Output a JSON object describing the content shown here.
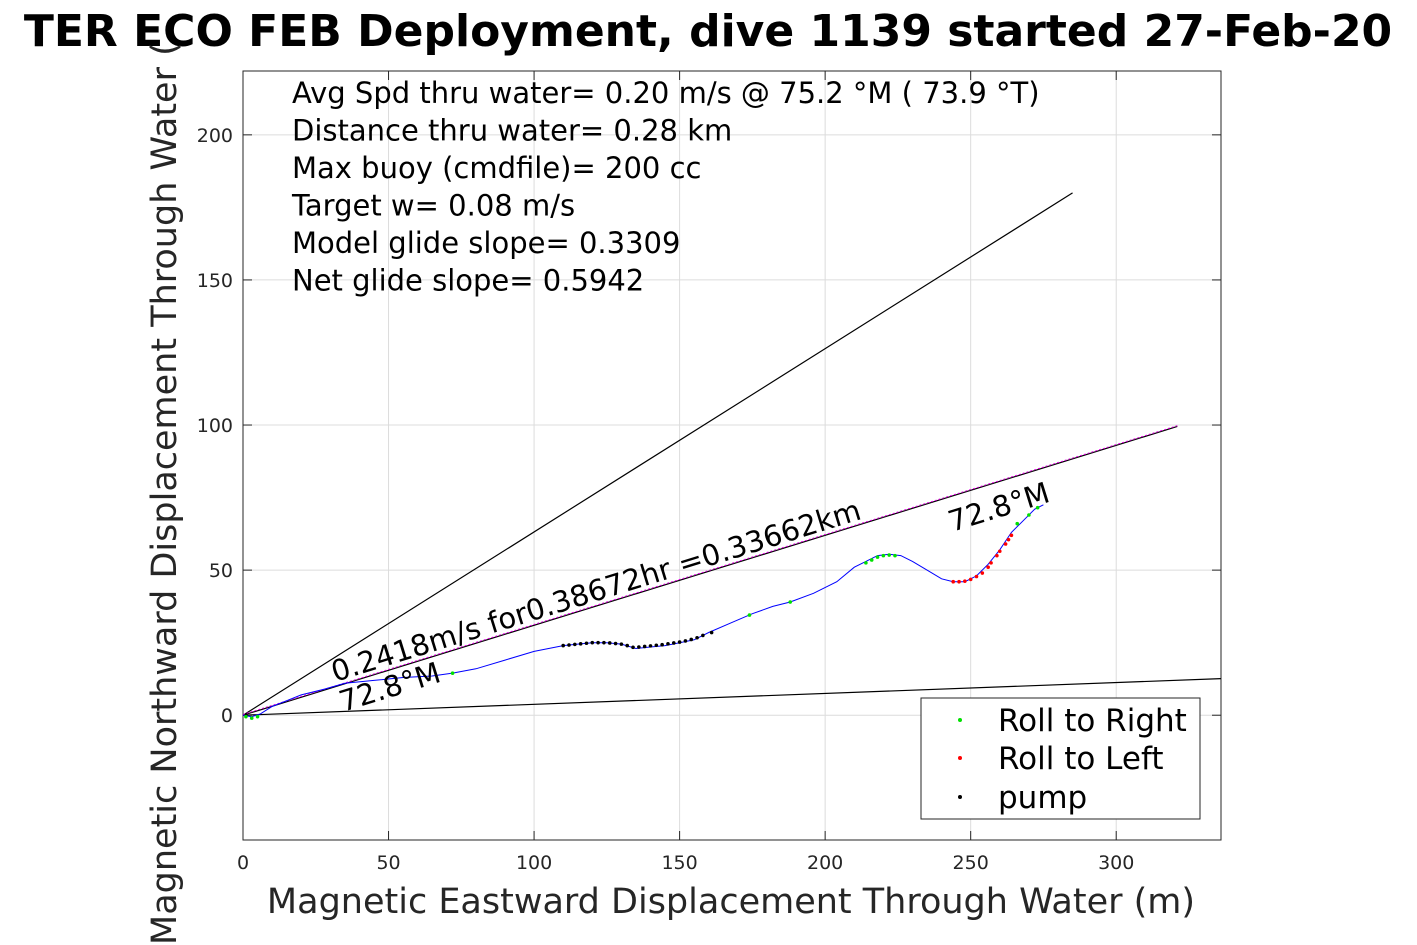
{
  "chart_data": {
    "type": "scatter",
    "title": "TER ECO FEB Deployment, dive 1139 started 27-Feb-20",
    "xlabel": "Magnetic Eastward Displacement Through Water (m)",
    "ylabel": "Magnetic Northward Displacement Through Water (",
    "xlim": [
      0,
      336
    ],
    "ylim": [
      -43,
      222
    ],
    "xticks": [
      0,
      50,
      100,
      150,
      200,
      250,
      300
    ],
    "yticks": [
      0,
      50,
      100,
      150,
      200
    ],
    "grid": true,
    "legend_position": "bottom-right",
    "annotations": [
      "Avg Spd thru water=  0.20 m/s @  75.2 °M ( 73.9 °T)",
      "Distance thru water=  0.28 km",
      "Max buoy (cmdfile)= 200 cc",
      "Target w= 0.08 m/s",
      "Model glide slope= 0.3309",
      "Net glide slope= 0.5942"
    ],
    "rotated_labels": {
      "current": "0.2418m/s for0.38672hr =0.33662km",
      "heading_start": "72.8°M",
      "heading_end": "72.8°M"
    },
    "lines": {
      "upper_bound": [
        [
          0,
          0
        ],
        [
          285,
          180
        ]
      ],
      "lower_bound": [
        [
          0,
          0
        ],
        [
          336,
          12.6
        ]
      ],
      "current_vector": [
        [
          0,
          0
        ],
        [
          321,
          99.5
        ]
      ]
    },
    "track": [
      [
        0,
        0
      ],
      [
        3,
        -0.5
      ],
      [
        6,
        0.5
      ],
      [
        10,
        3
      ],
      [
        15,
        5
      ],
      [
        20,
        7
      ],
      [
        28,
        9
      ],
      [
        35,
        11
      ],
      [
        45,
        12
      ],
      [
        55,
        13
      ],
      [
        65,
        13.5
      ],
      [
        72,
        14.5
      ],
      [
        80,
        16
      ],
      [
        90,
        19
      ],
      [
        100,
        22
      ],
      [
        110,
        24
      ],
      [
        115,
        24.5
      ],
      [
        120,
        25
      ],
      [
        125,
        25
      ],
      [
        130,
        24.5
      ],
      [
        135,
        23
      ],
      [
        140,
        23.5
      ],
      [
        145,
        24
      ],
      [
        150,
        25
      ],
      [
        155,
        26
      ],
      [
        160,
        28.5
      ],
      [
        168,
        32
      ],
      [
        175,
        35
      ],
      [
        182,
        37.5
      ],
      [
        188,
        39
      ],
      [
        196,
        42
      ],
      [
        204,
        46
      ],
      [
        210,
        51
      ],
      [
        214,
        53
      ],
      [
        218,
        55
      ],
      [
        222,
        55.5
      ],
      [
        226,
        55
      ],
      [
        230,
        53
      ],
      [
        235,
        50
      ],
      [
        240,
        47
      ],
      [
        244,
        46
      ],
      [
        248,
        46
      ],
      [
        252,
        48
      ],
      [
        256,
        52
      ],
      [
        260,
        57
      ],
      [
        264,
        63
      ],
      [
        268,
        67
      ],
      [
        272,
        71
      ],
      [
        275,
        72.5
      ]
    ],
    "series": [
      {
        "name": "Roll to Right",
        "color": "#00e000",
        "points": [
          [
            1,
            -0.5
          ],
          [
            3,
            -1
          ],
          [
            5,
            -0.5
          ],
          [
            72,
            14.5
          ],
          [
            174,
            34.5
          ],
          [
            188,
            39
          ],
          [
            214,
            52.5
          ],
          [
            216,
            53.5
          ],
          [
            218,
            54.5
          ],
          [
            220,
            55
          ],
          [
            222,
            55.2
          ],
          [
            224,
            55
          ],
          [
            266,
            66
          ],
          [
            270,
            69
          ],
          [
            273,
            71.5
          ]
        ]
      },
      {
        "name": "Roll to Left",
        "color": "#ff0000",
        "points": [
          [
            244,
            46
          ],
          [
            246,
            46
          ],
          [
            248,
            46.2
          ],
          [
            250,
            46.8
          ],
          [
            252,
            47.8
          ],
          [
            254,
            49
          ],
          [
            256,
            51
          ],
          [
            257,
            52.5
          ],
          [
            259,
            55
          ],
          [
            260,
            56.5
          ],
          [
            262,
            59
          ],
          [
            263,
            60.5
          ],
          [
            264,
            62
          ]
        ]
      },
      {
        "name": "pump",
        "color": "#000000",
        "points": [
          [
            110,
            24
          ],
          [
            112,
            24.2
          ],
          [
            114,
            24.4
          ],
          [
            116,
            24.6
          ],
          [
            118,
            24.8
          ],
          [
            120,
            25
          ],
          [
            122,
            25
          ],
          [
            124,
            25
          ],
          [
            126,
            24.9
          ],
          [
            128,
            24.7
          ],
          [
            130,
            24.5
          ],
          [
            132,
            24
          ],
          [
            134,
            23.4
          ],
          [
            136,
            23.5
          ],
          [
            138,
            23.7
          ],
          [
            140,
            23.9
          ],
          [
            142,
            24.1
          ],
          [
            144,
            24.3
          ],
          [
            146,
            24.6
          ],
          [
            148,
            24.9
          ],
          [
            150,
            25.2
          ],
          [
            152,
            25.6
          ],
          [
            154,
            26.1
          ],
          [
            156,
            26.7
          ],
          [
            158,
            27.5
          ],
          [
            161,
            28.5
          ]
        ]
      }
    ]
  }
}
